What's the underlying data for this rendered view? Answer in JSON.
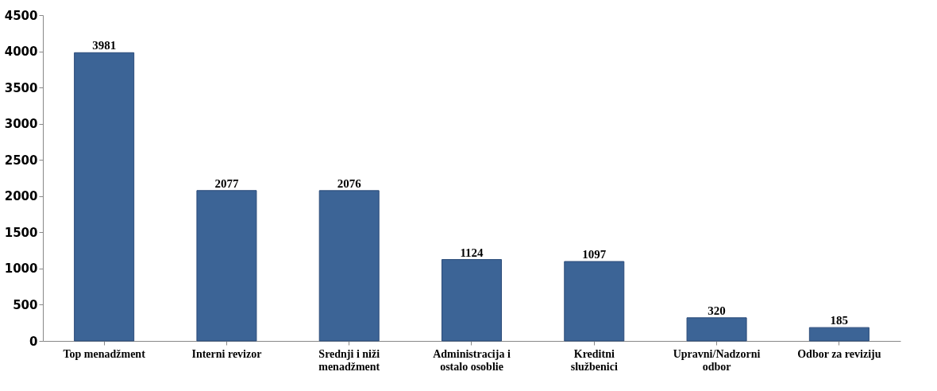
{
  "chart_data": {
    "type": "bar",
    "categories": [
      "Top menadžment",
      "Interni revizor",
      "Srednji i niži menadžment",
      "Administracija i ostalo osoblie",
      "Kreditni službenici",
      "Upravni/Nadzorni odbor",
      "Odbor za reviziju"
    ],
    "values": [
      3981,
      2077,
      2076,
      1124,
      1097,
      320,
      185
    ],
    "color": "#3c6496",
    "ylim": [
      0,
      4500
    ],
    "yticks": [
      0,
      500,
      1000,
      1500,
      2000,
      2500,
      3000,
      3500,
      4000,
      4500
    ],
    "data_labels": true,
    "grid": false
  }
}
